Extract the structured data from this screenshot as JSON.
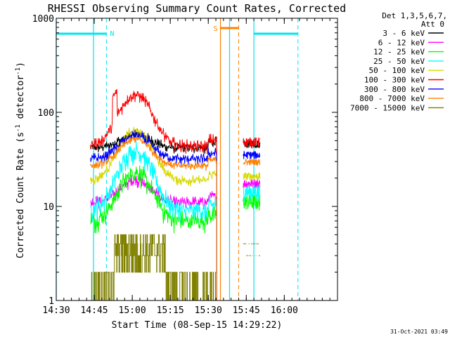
{
  "chart_data": {
    "type": "line",
    "title": "RHESSI Observing Summary Count Rates, Corrected",
    "xlabel": "Start Time (08-Sep-15 14:29:22)",
    "ylabel_main": "Corrected Count Rate (s",
    "ylabel_sup1": "-1",
    "ylabel_mid": " detector",
    "ylabel_sup2": "-1",
    "ylabel_end": ")",
    "y_scale": "log",
    "ylim": [
      1,
      1000
    ],
    "xlim_minutes": [
      14.5,
      16.35
    ],
    "x_ticks": [
      {
        "label": "14:30",
        "value": 14.5
      },
      {
        "label": "14:45",
        "value": 14.75
      },
      {
        "label": "15:00",
        "value": 15.0
      },
      {
        "label": "15:15",
        "value": 15.25
      },
      {
        "label": "15:30",
        "value": 15.5
      },
      {
        "label": "15:45",
        "value": 15.75
      },
      {
        "label": "16:00",
        "value": 16.0
      }
    ],
    "y_ticks": [
      {
        "label": "1",
        "value": 1
      },
      {
        "label": "10",
        "value": 10
      },
      {
        "label": "100",
        "value": 100
      },
      {
        "label": "1000",
        "value": 1000
      }
    ],
    "legend_header": [
      "Det 1,3,5,6,7,",
      "Att 0"
    ],
    "legend_position": "right",
    "series": [
      {
        "name": "3 - 6 keV",
        "color": "#000000"
      },
      {
        "name": "6 - 12 keV",
        "color": "#ff00ff"
      },
      {
        "name": "12 - 25 keV",
        "color": "#00ff00"
      },
      {
        "name": "25 - 50 keV",
        "color": "#00ffff"
      },
      {
        "name": "50 - 100 keV",
        "color": "#d8d800"
      },
      {
        "name": "100 - 300 keV",
        "color": "#ff0000"
      },
      {
        "name": "300 - 800 keV",
        "color": "#0000ff"
      },
      {
        "name": "800 - 7000 keV",
        "color": "#ff8000"
      },
      {
        "name": "7000 - 15000 keV",
        "color": "#808000"
      }
    ],
    "annotations": {
      "night_label": "N",
      "saa_label": "S"
    },
    "footer_timestamp": "31-Oct-2021 03:49"
  }
}
